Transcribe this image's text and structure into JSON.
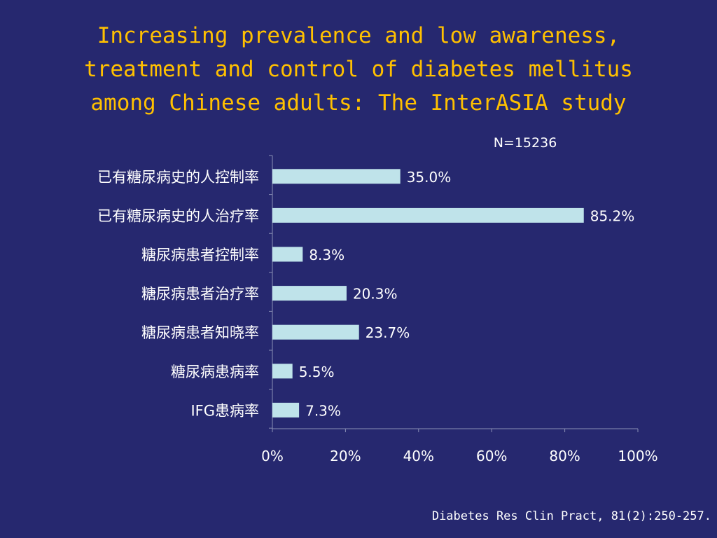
{
  "title_lines": [
    "Increasing prevalence and low awareness,",
    "treatment and control of diabetes mellitus",
    "among Chinese adults: The InterASIA study"
  ],
  "sample_size": "N=15236",
  "citation": "Diabetes Res Clin Pract, 81(2):250-257.",
  "colors": {
    "background": "#26286f",
    "title": "#ffc000",
    "bar_fill": "#bfe3ea",
    "text": "#ffffff"
  },
  "chart_data": {
    "type": "bar",
    "orientation": "horizontal",
    "categories": [
      "已有糖尿病史的人控制率",
      "已有糖尿病史的人治疗率",
      "糖尿病患者控制率",
      "糖尿病患者治疗率",
      "糖尿病患者知晓率",
      "糖尿病患病率",
      "IFG患病率"
    ],
    "values": [
      35.0,
      85.2,
      8.3,
      20.3,
      23.7,
      5.5,
      7.3
    ],
    "value_labels": [
      "35.0%",
      "85.2%",
      "8.3%",
      "20.3%",
      "23.7%",
      "5.5%",
      "7.3%"
    ],
    "xlim": [
      0,
      100
    ],
    "x_ticks": [
      0,
      20,
      40,
      60,
      80,
      100
    ],
    "x_tick_labels": [
      "0%",
      "20%",
      "40%",
      "60%",
      "80%",
      "100%"
    ],
    "grid": false
  }
}
